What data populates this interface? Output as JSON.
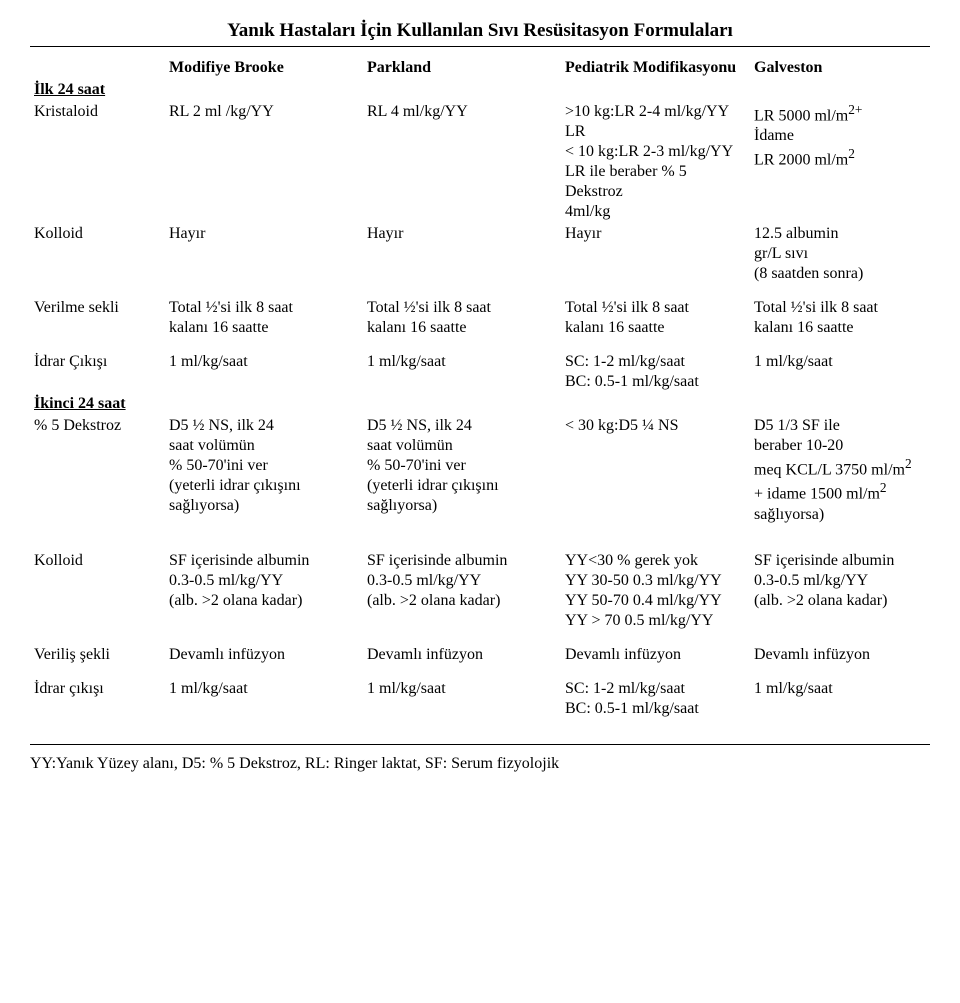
{
  "title": "Yanık Hastaları İçin Kullanılan Sıvı Resüsitasyon Formulaları",
  "cols": {
    "c1": "Modifiye Brooke",
    "c2": "Parkland",
    "c3": "Pediatrik Modifikasyonu",
    "c4": "Galveston"
  },
  "sections": {
    "first24": "İlk 24 saat",
    "second24": "İkinci 24 saat"
  },
  "rows": {
    "kristaloid": {
      "label": "Kristaloid",
      "c1": "RL 2 ml /kg/YY",
      "c2": "RL 4 ml/kg/YY",
      "c3_l1": ">10 kg:LR 2-4 ml/kg/YY LR",
      "c3_l2": "< 10 kg:LR  2-3 ml/kg/YY",
      "c3_l3": "LR ile beraber % 5 Dekstroz",
      "c3_l4": "4ml/kg",
      "c4_l1": "LR 5000 ml/m",
      "c4_l1_sup": "2+",
      "c4_l2": "İdame",
      "c4_l3": "LR 2000 ml/m",
      "c4_l3_sup": "2"
    },
    "kolloid1": {
      "label": "Kolloid",
      "c1": "Hayır",
      "c2": "Hayır",
      "c3": "Hayır",
      "c4_l1": "12.5 albumin",
      "c4_l2": "gr/L sıvı",
      "c4_l3": "(8   saatden   sonra)"
    },
    "verilme": {
      "label": "Verilme sekli",
      "c1_l1": "Total ½'si ilk 8 saat",
      "c1_l2": "kalanı 16 saatte",
      "c2_l1": "Total ½'si ilk 8 saat",
      "c2_l2": "kalanı 16 saatte",
      "c3_l1": "Total ½'si ilk 8 saat",
      "c3_l2": "kalanı 16 saatte",
      "c4_l1": "Total ½'si ilk 8 saat",
      "c4_l2": "kalanı 16 saatte"
    },
    "idrar1": {
      "label": "İdrar Çıkışı",
      "c1": "1 ml/kg/saat",
      "c2": "1 ml/kg/saat",
      "c3_l1": "SC: 1-2 ml/kg/saat",
      "c3_l2": "BC: 0.5-1 ml/kg/saat",
      "c4": "1 ml/kg/saat"
    },
    "dekstroz": {
      "label": "% 5 Dekstroz",
      "c1_l1": "D5 ½ NS, ilk 24",
      "c1_l2": "saat volümün",
      "c1_l3": "% 50-70'ini ver",
      "c1_l4": "(yeterli idrar çıkışını",
      "c1_l5": "sağlıyorsa)",
      "c2_l1": "D5 ½ NS, ilk 24",
      "c2_l2": "saat volümün",
      "c2_l3": "% 50-70'ini ver",
      "c2_l4": "(yeterli idrar çıkışını",
      "c2_l5": "sağlıyorsa)",
      "c3": "< 30 kg:D5 ¼ NS",
      "c4_l1": "D5 1/3 SF ile",
      "c4_l2": "beraber 10-20",
      "c4_l3a": "meq    KCL/L    3750    ml/m",
      "c4_l3_sup": "2",
      "c4_l4a": "+ idame 1500 ml/m",
      "c4_l4_sup": "2",
      "c4_l5": "sağlıyorsa)"
    },
    "kolloid2": {
      "label": "Kolloid",
      "c1_l1": "SF içerisinde albumin",
      "c1_l2": "0.3-0.5 ml/kg/YY",
      "c1_l3": "(alb. >2 olana kadar)",
      "c2_l1": "SF içerisinde albumin",
      "c2_l2": "0.3-0.5 ml/kg/YY",
      "c2_l3": "(alb. >2 olana kadar)",
      "c3_l1": "YY<30 % gerek yok",
      "c3_l2": "YY 30-50 0.3 ml/kg/YY",
      "c3_l3": "YY 50-70 0.4 ml/kg/YY",
      "c3_l4": "YY > 70 0.5 ml/kg/YY",
      "c4_l1": "SF içerisinde albumin",
      "c4_l2": "0.3-0.5 ml/kg/YY",
      "c4_l3": "(alb. >2 olana kadar)"
    },
    "verilis": {
      "label": "Veriliş şekli",
      "c1": "Devamlı infüzyon",
      "c2": "Devamlı infüzyon",
      "c3": "Devamlı infüzyon",
      "c4": "Devamlı infüzyon"
    },
    "idrar2": {
      "label": "İdrar çıkışı",
      "c1": "1 ml/kg/saat",
      "c2": "1 ml/kg/saat",
      "c3_l1": "SC: 1-2 ml/kg/saat",
      "c3_l2": "BC: 0.5-1 ml/kg/saat",
      "c4": "1 ml/kg/saat"
    }
  },
  "footnote": "YY:Yanık Yüzey alanı, D5: % 5 Dekstroz, RL: Ringer laktat, SF: Serum fizyolojik"
}
